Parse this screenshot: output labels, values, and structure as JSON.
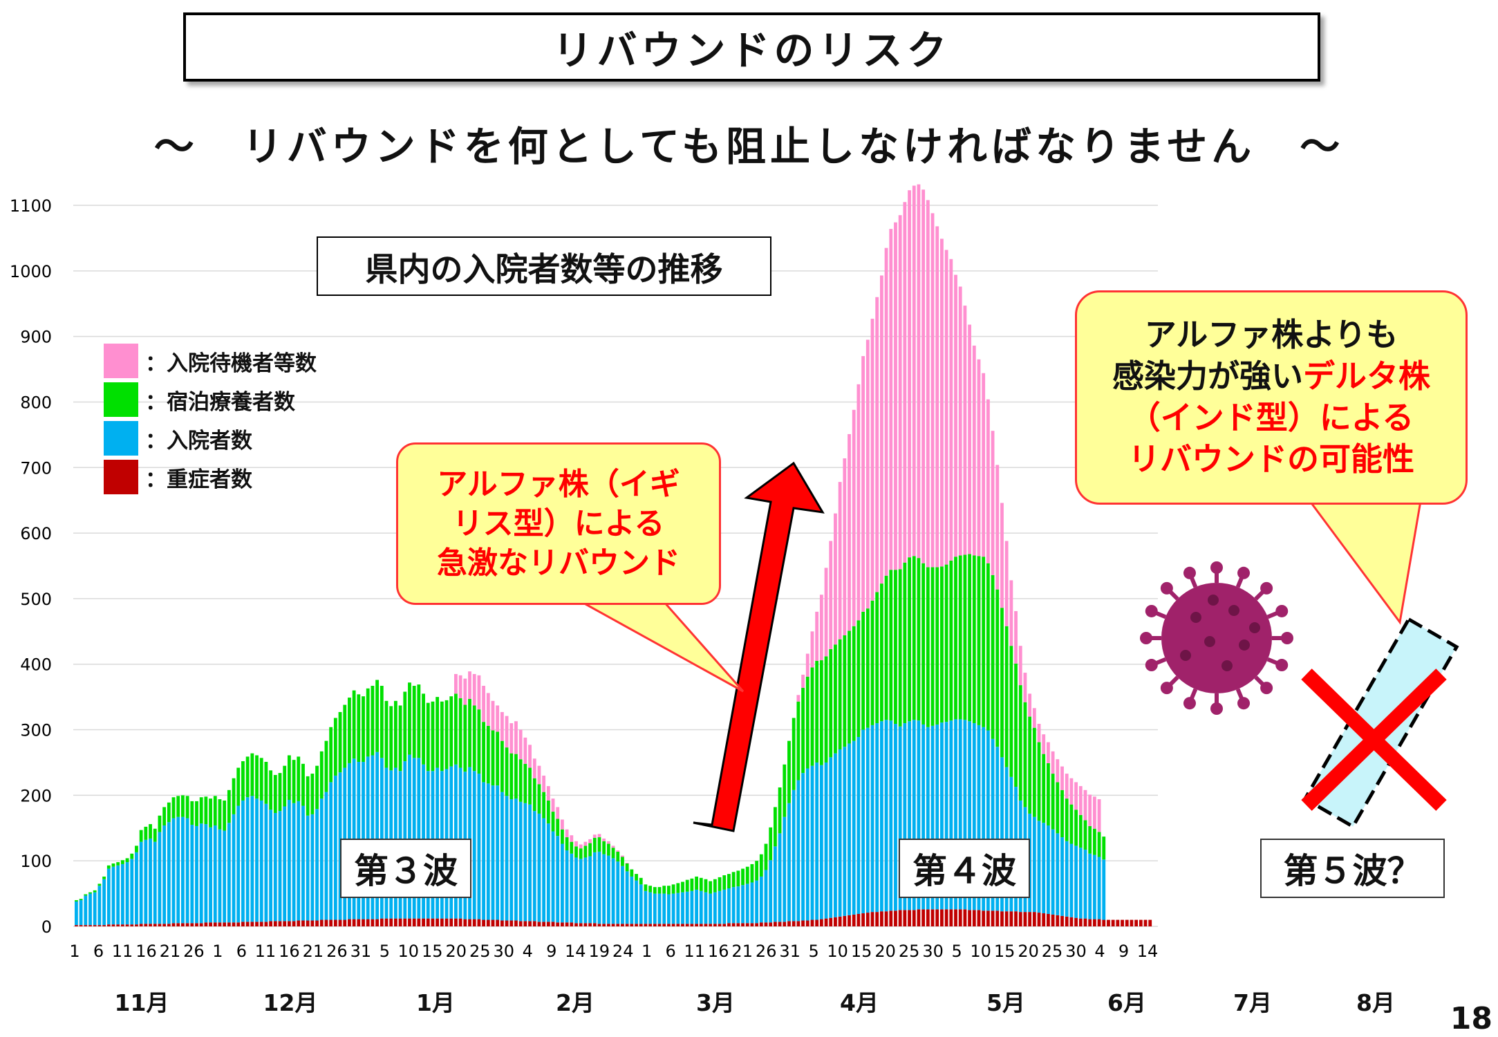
{
  "slide": {
    "title": "リバウンドのリスク",
    "subtitle": "～　リバウンドを何としても阻止しなければなりません　～",
    "page_number": "18"
  },
  "chart_data": {
    "type": "bar",
    "stacked": true,
    "title": "県内の入院者数等の推移",
    "ylim": [
      0,
      1100
    ],
    "yticks": [
      0,
      100,
      200,
      300,
      400,
      500,
      600,
      700,
      800,
      900,
      1000,
      1100
    ],
    "grid": true,
    "legend_position": "top-left",
    "x_tick_labels": [
      "1",
      "6",
      "11",
      "16",
      "21",
      "26",
      "1",
      "6",
      "11",
      "16",
      "21",
      "26",
      "31",
      "5",
      "10",
      "15",
      "20",
      "25",
      "30",
      "4",
      "9",
      "14",
      "19",
      "24",
      "1",
      "6",
      "11",
      "16",
      "21",
      "26",
      "31",
      "5",
      "10",
      "15",
      "20",
      "25",
      "30",
      "5",
      "10",
      "15",
      "20",
      "25",
      "30",
      "4",
      "9",
      "14"
    ],
    "months": [
      "11月",
      "12月",
      "1月",
      "2月",
      "3月",
      "4月",
      "5月",
      "6月",
      "7月",
      "8月"
    ],
    "series_order": [
      "重症者数",
      "入院者数",
      "宿泊療養者数",
      "入院待機者等数"
    ],
    "series": [
      {
        "name": "重症者数",
        "color": "#c00000",
        "values": [
          2,
          2,
          2,
          2,
          2,
          2,
          2,
          3,
          3,
          3,
          3,
          3,
          3,
          3,
          4,
          4,
          4,
          4,
          4,
          4,
          4,
          5,
          5,
          5,
          5,
          5,
          5,
          5,
          6,
          6,
          6,
          6,
          6,
          6,
          6,
          6,
          7,
          7,
          7,
          7,
          7,
          7,
          8,
          8,
          8,
          8,
          8,
          8,
          9,
          9,
          9,
          9,
          9,
          10,
          10,
          10,
          10,
          10,
          10,
          11,
          11,
          11,
          11,
          11,
          11,
          11,
          12,
          12,
          12,
          12,
          12,
          12,
          12,
          12,
          12,
          12,
          12,
          12,
          12,
          12,
          12,
          12,
          12,
          12,
          11,
          11,
          11,
          11,
          10,
          10,
          10,
          10,
          9,
          9,
          9,
          9,
          8,
          8,
          8,
          8,
          7,
          7,
          7,
          7,
          6,
          6,
          6,
          6,
          5,
          5,
          5,
          5,
          5,
          4,
          4,
          4,
          4,
          4,
          4,
          4,
          4,
          4,
          4,
          4,
          4,
          4,
          4,
          4,
          4,
          4,
          4,
          4,
          4,
          4,
          4,
          4,
          4,
          4,
          4,
          4,
          4,
          5,
          5,
          5,
          5,
          5,
          5,
          5,
          6,
          6,
          6,
          7,
          7,
          7,
          8,
          8,
          8,
          9,
          9,
          10,
          10,
          11,
          12,
          13,
          14,
          15,
          16,
          17,
          18,
          19,
          20,
          21,
          22,
          22,
          23,
          23,
          24,
          24,
          25,
          25,
          25,
          25,
          26,
          26,
          26,
          26,
          26,
          26,
          26,
          26,
          26,
          26,
          26,
          25,
          25,
          25,
          24,
          24,
          24,
          24,
          23,
          23,
          23,
          23,
          22,
          22,
          22,
          22,
          21,
          20,
          19,
          18,
          17,
          16,
          15,
          14,
          13,
          12,
          12,
          11,
          11,
          11,
          10,
          10,
          10,
          10,
          10,
          10,
          10,
          10,
          10,
          10,
          10
        ]
      },
      {
        "name": "入院者数",
        "color": "#00b0f0",
        "values": [
          36,
          38,
          45,
          48,
          50,
          60,
          70,
          85,
          88,
          90,
          92,
          95,
          100,
          110,
          125,
          128,
          130,
          125,
          140,
          150,
          155,
          160,
          162,
          162,
          160,
          150,
          148,
          152,
          150,
          145,
          148,
          142,
          140,
          152,
          165,
          178,
          185,
          190,
          192,
          188,
          185,
          180,
          170,
          165,
          168,
          175,
          185,
          180,
          182,
          175,
          160,
          162,
          170,
          185,
          195,
          210,
          220,
          225,
          232,
          238,
          245,
          240,
          240,
          248,
          250,
          255,
          245,
          230,
          226,
          230,
          225,
          240,
          250,
          245,
          245,
          235,
          225,
          225,
          230,
          225,
          228,
          232,
          235,
          230,
          225,
          232,
          226,
          222,
          210,
          208,
          205,
          205,
          196,
          190,
          185,
          186,
          182,
          180,
          178,
          168,
          165,
          158,
          150,
          138,
          132,
          120,
          110,
          105,
          100,
          98,
          100,
          102,
          108,
          110,
          106,
          104,
          100,
          95,
          88,
          80,
          72,
          66,
          60,
          50,
          48,
          46,
          46,
          46,
          45,
          46,
          47,
          48,
          49,
          50,
          52,
          50,
          48,
          46,
          48,
          50,
          52,
          53,
          55,
          56,
          58,
          60,
          62,
          65,
          70,
          80,
          95,
          115,
          135,
          160,
          180,
          200,
          215,
          225,
          232,
          235,
          240,
          235,
          238,
          245,
          250,
          255,
          258,
          262,
          265,
          270,
          280,
          282,
          285,
          288,
          290,
          292,
          290,
          285,
          280,
          285,
          288,
          290,
          288,
          282,
          278,
          280,
          282,
          285,
          286,
          288,
          290,
          290,
          289,
          288,
          285,
          282,
          280,
          275,
          262,
          250,
          235,
          220,
          205,
          190,
          170,
          160,
          150,
          145,
          140,
          138,
          135,
          130,
          125,
          120,
          115,
          112,
          110,
          108,
          105,
          100,
          98,
          95,
          92
        ]
      },
      {
        "name": "宿泊療養者数",
        "color": "#00e000",
        "values": [
          2,
          2,
          2,
          2,
          3,
          3,
          4,
          5,
          5,
          5,
          6,
          6,
          8,
          10,
          18,
          20,
          22,
          20,
          25,
          28,
          30,
          32,
          32,
          33,
          34,
          36,
          38,
          40,
          42,
          44,
          45,
          46,
          46,
          50,
          55,
          58,
          60,
          62,
          65,
          66,
          65,
          64,
          60,
          58,
          58,
          62,
          68,
          66,
          68,
          64,
          60,
          62,
          66,
          72,
          78,
          84,
          88,
          92,
          96,
          100,
          104,
          103,
          100,
          104,
          106,
          110,
          110,
          102,
          98,
          102,
          100,
          106,
          110,
          110,
          112,
          108,
          104,
          106,
          108,
          106,
          105,
          107,
          108,
          106,
          102,
          104,
          100,
          98,
          92,
          88,
          84,
          82,
          78,
          74,
          70,
          68,
          65,
          60,
          56,
          50,
          45,
          40,
          35,
          30,
          26,
          22,
          20,
          18,
          17,
          16,
          18,
          20,
          22,
          22,
          20,
          18,
          16,
          15,
          14,
          12,
          11,
          10,
          10,
          10,
          10,
          10,
          10,
          12,
          13,
          14,
          15,
          16,
          18,
          19,
          20,
          20,
          20,
          19,
          20,
          21,
          22,
          22,
          23,
          24,
          25,
          26,
          28,
          30,
          34,
          40,
          50,
          60,
          70,
          80,
          95,
          110,
          120,
          130,
          140,
          150,
          155,
          160,
          162,
          165,
          166,
          168,
          170,
          172,
          175,
          178,
          180,
          182,
          190,
          200,
          210,
          220,
          230,
          235,
          240,
          245,
          250,
          250,
          248,
          246,
          244,
          242,
          240,
          238,
          240,
          244,
          248,
          250,
          252,
          255,
          256,
          258,
          260,
          255,
          250,
          240,
          228,
          215,
          200,
          188,
          176,
          160,
          148,
          136,
          120,
          105,
          95,
          85,
          78,
          72,
          65,
          60,
          55,
          50,
          45,
          42,
          40,
          38,
          35
        ]
      },
      {
        "name": "入院待機者等数",
        "color": "#ff8fd0",
        "values": [
          0,
          0,
          0,
          0,
          0,
          0,
          0,
          0,
          0,
          0,
          0,
          0,
          0,
          0,
          0,
          0,
          0,
          0,
          0,
          0,
          0,
          0,
          0,
          0,
          0,
          0,
          0,
          0,
          0,
          0,
          0,
          0,
          0,
          0,
          0,
          0,
          0,
          0,
          0,
          0,
          0,
          0,
          0,
          0,
          0,
          0,
          0,
          0,
          0,
          0,
          0,
          0,
          0,
          0,
          0,
          0,
          0,
          0,
          0,
          0,
          0,
          0,
          0,
          0,
          0,
          0,
          0,
          0,
          0,
          0,
          0,
          0,
          0,
          0,
          0,
          0,
          0,
          0,
          0,
          0,
          0,
          0,
          30,
          35,
          40,
          42,
          48,
          52,
          55,
          50,
          45,
          40,
          44,
          48,
          46,
          50,
          45,
          40,
          35,
          30,
          28,
          25,
          22,
          20,
          18,
          15,
          12,
          10,
          8,
          6,
          6,
          6,
          5,
          5,
          4,
          4,
          3,
          2,
          2,
          1,
          0,
          0,
          0,
          0,
          0,
          0,
          0,
          0,
          0,
          0,
          0,
          0,
          0,
          0,
          0,
          0,
          0,
          0,
          0,
          0,
          0,
          0,
          0,
          0,
          0,
          0,
          0,
          0,
          0,
          0,
          0,
          0,
          0,
          0,
          0,
          0,
          10,
          20,
          35,
          55,
          75,
          100,
          135,
          165,
          200,
          240,
          270,
          300,
          330,
          360,
          390,
          410,
          430,
          450,
          470,
          500,
          520,
          530,
          540,
          550,
          560,
          565,
          570,
          570,
          560,
          540,
          520,
          500,
          480,
          460,
          430,
          410,
          380,
          350,
          320,
          300,
          280,
          250,
          220,
          190,
          160,
          130,
          100,
          80,
          60,
          45,
          35,
          30,
          28,
          30,
          32,
          34,
          35,
          36,
          38,
          40,
          42,
          44,
          46,
          48,
          49,
          50
        ]
      }
    ],
    "annotations": {
      "wave3": "第３波",
      "wave4": "第４波",
      "wave5": "第５波？",
      "callout_alpha_lines": [
        "アルファ株（イギ",
        "リス型）による",
        "急激なリバウンド"
      ],
      "callout_delta_line1": "アルファ株よりも",
      "callout_delta_line2_black": "感染力が強い",
      "callout_delta_line2_red": "デルタ株",
      "callout_delta_line3_red": "（インド型）による",
      "callout_delta_line4_red": "リバウンドの可能性"
    }
  },
  "colors": {
    "severe": "#c00000",
    "hospitalized": "#00b0f0",
    "hotel": "#00e000",
    "waiting": "#ff8fd0",
    "callout_fill": "#ffff99",
    "callout_border": "#ff3333",
    "arrow": "#ff0000",
    "virus": "#a0226a"
  },
  "icons": {
    "virus": "coronavirus-icon",
    "cross": "x-mark-icon",
    "up_arrow": "up-arrow-icon"
  }
}
